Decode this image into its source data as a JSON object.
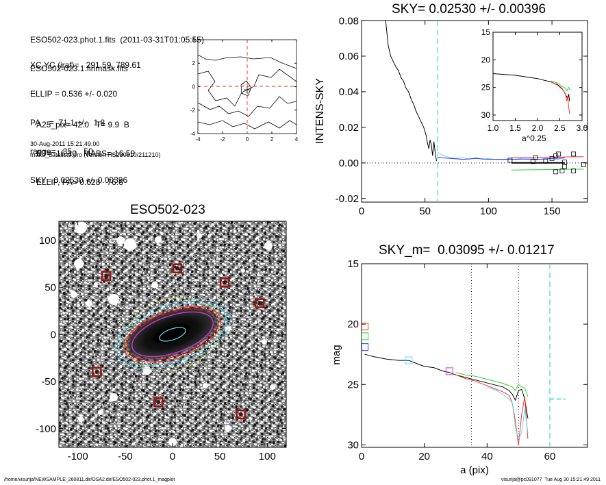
{
  "header": {
    "lines1": [
      "ESO502-023.phot.1.fits  (2011-03-31T01:05:55)",
      "ESO502-023.1.finmask.fits"
    ],
    "lines2": [
      "XC,YC (iraf)=   291.59, 789.61",
      "ELLIP = 0.536 +/- 0.020",
      "PA    =  71.1 +/-   1.8",
      "range=   35.-   50.",
      "SKY= 0.02530 +/- 0.00396"
    ],
    "lines3": [
      "A25_pix= 42.0   T= 9.9  B",
      "BT=  16.10   MABS=-16.59",
      "ELLIP, PA= 0.628   76.6"
    ],
    "date": "30-Aug-2011 15:21:49.00",
    "program": "make_datalist0.pro (version HS230610/211210)"
  },
  "footer": {
    "left": "/home/visurija/NEWSAMPLE_260811.dir/OSA2.dir/ESO502-023.phot.1_magplot",
    "right": "visurija@pc091077  Tue Aug 30 15:21:49 2011"
  },
  "colors": {
    "cyan": "#5fdcf0",
    "red": "#ff3030",
    "green": "#30d030",
    "blue": "#3030ff",
    "magenta": "#cc33cc",
    "yellow": "#e8e870",
    "maroon": "#a01010"
  },
  "chart_data": [
    {
      "id": "center-contour",
      "type": "contour",
      "xlim": [
        -4,
        4
      ],
      "ylim": [
        -4,
        4
      ],
      "xticks": [
        -4,
        -2,
        0,
        2,
        4
      ],
      "yticks": [
        -4,
        -2,
        0,
        2,
        4
      ],
      "xtick_labels": [
        "-4",
        "-2",
        "0",
        "2",
        "4"
      ],
      "ytick_labels": [
        "-4",
        "-2",
        "0",
        "2",
        "4"
      ]
    },
    {
      "id": "image",
      "type": "image",
      "title": "ESO502-023",
      "xlim": [
        -120,
        120
      ],
      "ylim": [
        -120,
        120
      ],
      "xticks": [
        -100,
        -50,
        0,
        50,
        100
      ],
      "yticks": [
        -100,
        -50,
        0,
        50,
        100
      ],
      "xtick_labels": [
        "-100",
        "-50",
        "0",
        "50",
        "100"
      ],
      "ytick_labels": [
        "-100",
        "-50",
        "0",
        "50",
        "100"
      ],
      "stars": [
        [
          -70,
          62
        ],
        [
          5,
          70
        ],
        [
          55,
          55
        ],
        [
          92,
          33
        ],
        [
          -80,
          -40
        ],
        [
          -15,
          -72
        ],
        [
          72,
          -85
        ]
      ],
      "ellipse_pa_deg": 71.1,
      "ellipse_ellip": 0.536
    },
    {
      "id": "sky",
      "type": "line",
      "title": "SKY= 0.02530 +/- 0.00396",
      "xlabel": "",
      "ylabel": "INTENS-SKY",
      "xlim": [
        0,
        178
      ],
      "ylim": [
        -0.022,
        0.08
      ],
      "xticks": [
        0,
        50,
        100,
        150
      ],
      "yticks": [
        -0.02,
        0.0,
        0.02,
        0.04,
        0.06,
        0.08
      ],
      "xtick_labels": [
        "0",
        "50",
        "100",
        "150"
      ],
      "ytick_labels": [
        "-0.02",
        "0.00",
        "0.02",
        "0.04",
        "0.06",
        "0.08"
      ],
      "vline_x": 60,
      "series": [
        {
          "color": "black",
          "x": [
            19,
            21,
            23,
            25,
            27,
            29,
            31,
            33,
            35,
            37,
            39,
            41,
            43,
            45,
            47,
            49,
            51,
            52,
            53,
            54,
            55,
            56,
            57,
            58,
            59
          ],
          "y": [
            0.08,
            0.066,
            0.06,
            0.057,
            0.054,
            0.052,
            0.048,
            0.046,
            0.042,
            0.04,
            0.036,
            0.033,
            0.029,
            0.026,
            0.023,
            0.02,
            0.015,
            0.011,
            0.008,
            0.013,
            0.01,
            0.004,
            0.012,
            0.006,
            0.001
          ]
        },
        {
          "color": "cyan",
          "x": [
            60,
            65,
            70,
            75,
            80,
            85,
            90,
            95,
            100,
            105,
            110,
            115,
            120,
            125,
            130,
            135,
            140,
            145,
            150,
            155,
            160
          ],
          "y": [
            0.006,
            0.004,
            0.003,
            0.0025,
            0.003,
            0.002,
            0.003,
            0.002,
            0.0025,
            0.002,
            0.0018,
            0.0022,
            0.002,
            0.0025,
            0.002,
            0.0023,
            0.002,
            0.0025,
            0.0022,
            0.002,
            0.003
          ]
        },
        {
          "color": "blue",
          "x": [
            60,
            70,
            80,
            90,
            100,
            110,
            120,
            130,
            140,
            150,
            160
          ],
          "y": [
            0.003,
            0.0025,
            0.002,
            0.0025,
            0.002,
            0.002,
            0.002,
            0.0022,
            0.002,
            0.0025,
            0.0028
          ]
        },
        {
          "color": "red",
          "x": [
            118,
            175
          ],
          "y": [
            0.003,
            0.0035
          ]
        },
        {
          "color": "black",
          "x": [
            118,
            160
          ],
          "y": [
            0.0,
            0.0
          ]
        },
        {
          "color": "green",
          "x": [
            118,
            175
          ],
          "y": [
            -0.004,
            -0.0035
          ]
        }
      ],
      "points": {
        "x": [
          117,
          135,
          150,
          155,
          160,
          167,
          175,
          153,
          145,
          137,
          160,
          158,
          167,
          153
        ],
        "y": [
          0.0015,
          0.0008,
          0.0025,
          0.005,
          0.0005,
          0.005,
          -0.001,
          0.004,
          0.001,
          0.003,
          -0.002,
          -0.0045,
          -0.0045,
          -0.005
        ]
      },
      "inset": {
        "xlabel": "a^0.25",
        "xlim": [
          1.0,
          3.0
        ],
        "ylim": [
          15,
          31
        ],
        "xticks": [
          1.0,
          1.5,
          2.0,
          2.5,
          3.0
        ],
        "yticks": [
          15,
          20,
          25,
          30
        ],
        "xtick_labels": [
          "1.0",
          "1.5",
          "2.0",
          "2.5",
          "3.0"
        ],
        "ytick_labels": [
          "15",
          "20",
          "25",
          "30"
        ],
        "series": [
          {
            "color": "black",
            "x": [
              1.0,
              1.5,
              2.0,
              2.3,
              2.45,
              2.55,
              2.6,
              2.64,
              2.68,
              2.7,
              2.72
            ],
            "y": [
              22.5,
              22.8,
              23.4,
              24.0,
              24.5,
              25.2,
              25.8,
              26.5,
              27.0,
              26.2,
              27.5
            ]
          },
          {
            "color": "red",
            "x": [
              2.3,
              2.45,
              2.55,
              2.62,
              2.66,
              2.68,
              2.7,
              2.72
            ],
            "y": [
              24.0,
              24.6,
              25.3,
              26.0,
              27.5,
              26.5,
              28.5,
              29.8
            ]
          },
          {
            "color": "green",
            "x": [
              2.3,
              2.45,
              2.55,
              2.62,
              2.66,
              2.7,
              2.74
            ],
            "y": [
              23.8,
              24.2,
              24.8,
              25.1,
              25.6,
              25.0,
              25.5
            ]
          }
        ]
      }
    },
    {
      "id": "mag",
      "type": "line",
      "title": "SKY_m=  0.03095 +/- 0.01217",
      "xlabel": "a (pix)",
      "ylabel": "mag",
      "xlim": [
        0,
        72
      ],
      "ylim": [
        15,
        30.2
      ],
      "xticks": [
        0,
        20,
        40,
        60
      ],
      "yticks": [
        15,
        20,
        25,
        30
      ],
      "xtick_labels": [
        "0",
        "20",
        "40",
        "60"
      ],
      "ytick_labels": [
        "15",
        "20",
        "25",
        "30"
      ],
      "vlines_dotted": [
        35,
        50
      ],
      "vline_dashed": 60,
      "dashed_mark": {
        "x1": 60,
        "x2": 65,
        "y": 26.2
      },
      "series": [
        {
          "color": "black",
          "x": [
            1,
            4,
            8,
            12,
            15,
            17,
            20,
            23,
            26,
            28,
            30,
            33,
            36,
            39,
            42,
            45,
            47,
            48,
            49,
            50,
            51,
            52,
            53
          ],
          "y": [
            22.5,
            22.7,
            22.9,
            23.0,
            23.0,
            23.2,
            23.5,
            23.6,
            23.9,
            24.0,
            24.2,
            24.4,
            24.6,
            24.8,
            25.0,
            25.2,
            25.5,
            25.8,
            26.3,
            25.5,
            25.4,
            26.2,
            27.8
          ]
        },
        {
          "color": "red",
          "x": [
            30,
            33,
            36,
            39,
            42,
            45,
            47,
            48,
            49,
            50,
            51,
            52,
            53
          ],
          "y": [
            24.2,
            24.5,
            24.7,
            25.0,
            25.3,
            25.6,
            25.9,
            26.5,
            28.0,
            30.0,
            27.5,
            26.0,
            29.5
          ]
        },
        {
          "color": "green",
          "x": [
            30,
            33,
            36,
            39,
            42,
            45,
            47,
            48,
            49,
            50,
            51,
            52,
            53
          ],
          "y": [
            24.0,
            24.2,
            24.3,
            24.5,
            24.7,
            24.9,
            25.1,
            25.2,
            25.5,
            25.0,
            25.2,
            25.3,
            26.0
          ]
        },
        {
          "color": "cyan",
          "x": [
            40,
            43,
            46,
            48,
            49,
            50,
            51,
            52,
            53
          ],
          "y": [
            25.2,
            25.5,
            26.0,
            26.5,
            28.5,
            29.5,
            29.0,
            27.0,
            29.0
          ]
        }
      ],
      "markers": [
        {
          "color": "red",
          "x": 1,
          "y": 20.2
        },
        {
          "color": "green",
          "x": 1,
          "y": 21.0
        },
        {
          "color": "blue",
          "x": 1,
          "y": 21.9
        },
        {
          "color": "cyan",
          "x": 15,
          "y": 23.0
        },
        {
          "color": "magenta",
          "x": 28,
          "y": 23.9
        }
      ]
    }
  ]
}
